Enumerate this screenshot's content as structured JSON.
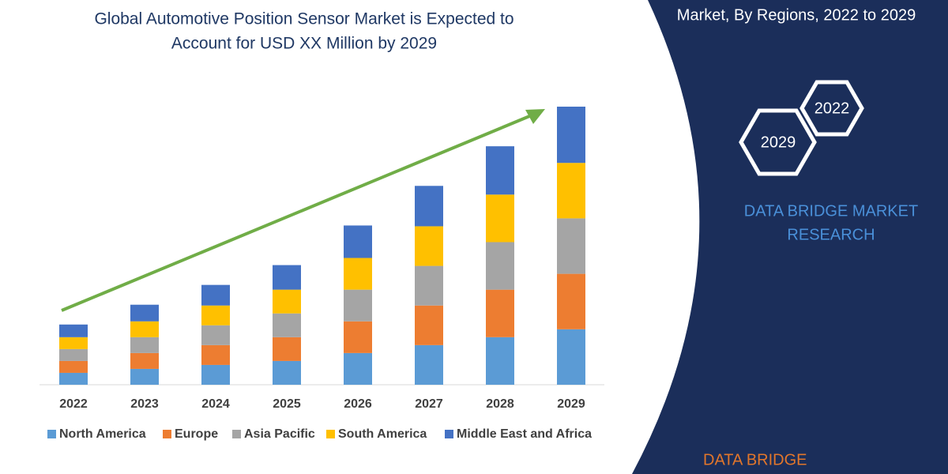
{
  "chart_data": {
    "type": "stacked-bar",
    "title": [
      "Global Automotive Position Sensor Market is Expected to",
      "Account for USD XX Million by 2029"
    ],
    "categories": [
      "2022",
      "2023",
      "2024",
      "2025",
      "2026",
      "2027",
      "2028",
      "2029"
    ],
    "series": [
      {
        "name": "North America",
        "color": "#5b9bd5",
        "values": [
          15,
          20,
          25,
          30,
          40,
          50,
          60,
          70
        ]
      },
      {
        "name": "Europe",
        "color": "#ed7d31",
        "values": [
          15,
          20,
          25,
          30,
          40,
          50,
          60,
          70
        ]
      },
      {
        "name": "Asia Pacific",
        "color": "#a5a5a5",
        "values": [
          15,
          20,
          25,
          30,
          40,
          50,
          60,
          70
        ]
      },
      {
        "name": "South America",
        "color": "#ffc000",
        "values": [
          15,
          20,
          25,
          30,
          40,
          50,
          60,
          70
        ]
      },
      {
        "name": "Middle East and Africa",
        "color": "#4472c4",
        "values": [
          16,
          21,
          26,
          31,
          41,
          51,
          61,
          71
        ]
      }
    ],
    "legend": "bottom"
  },
  "panel": {
    "heading": "Market, By Regions, 2022 to 2029",
    "badges": [
      "2022",
      "2029"
    ],
    "brand": [
      "DATA BRIDGE MARKET",
      "RESEARCH"
    ],
    "logo": "DATA BRIDGE"
  }
}
